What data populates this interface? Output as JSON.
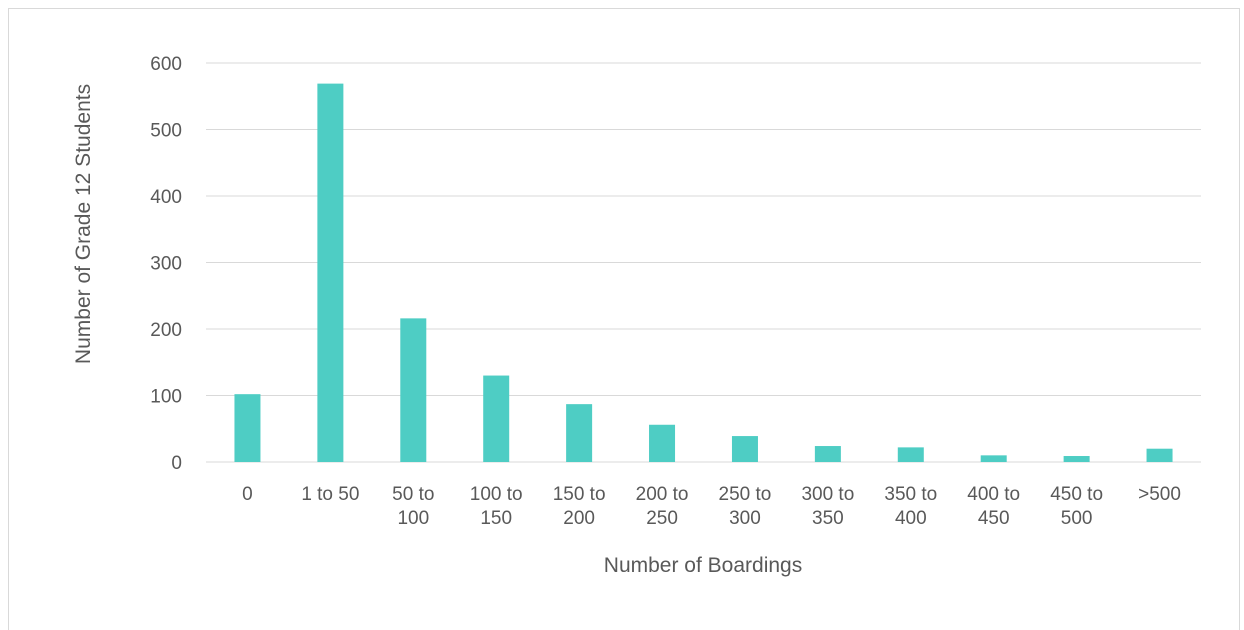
{
  "chart_data": {
    "type": "bar",
    "title": "",
    "xlabel": "Number of Boardings",
    "ylabel": "Number of Grade 12 Students",
    "ylim": [
      0,
      600
    ],
    "yticks": [
      "0",
      "100",
      "200",
      "300",
      "400",
      "500",
      "600"
    ],
    "grid": true,
    "bar_color": "#4ecdc4",
    "categories": [
      [
        "0"
      ],
      [
        "1 to 50"
      ],
      [
        "50 to",
        "100"
      ],
      [
        "100 to",
        "150"
      ],
      [
        "150 to",
        "200"
      ],
      [
        "200 to",
        "250"
      ],
      [
        "250 to",
        "300"
      ],
      [
        "300 to",
        "350"
      ],
      [
        "350 to",
        "400"
      ],
      [
        "400 to",
        "450"
      ],
      [
        "450 to",
        "500"
      ],
      [
        ">500"
      ]
    ],
    "values": [
      102,
      569,
      216,
      130,
      87,
      56,
      39,
      24,
      22,
      10,
      9,
      20
    ]
  }
}
